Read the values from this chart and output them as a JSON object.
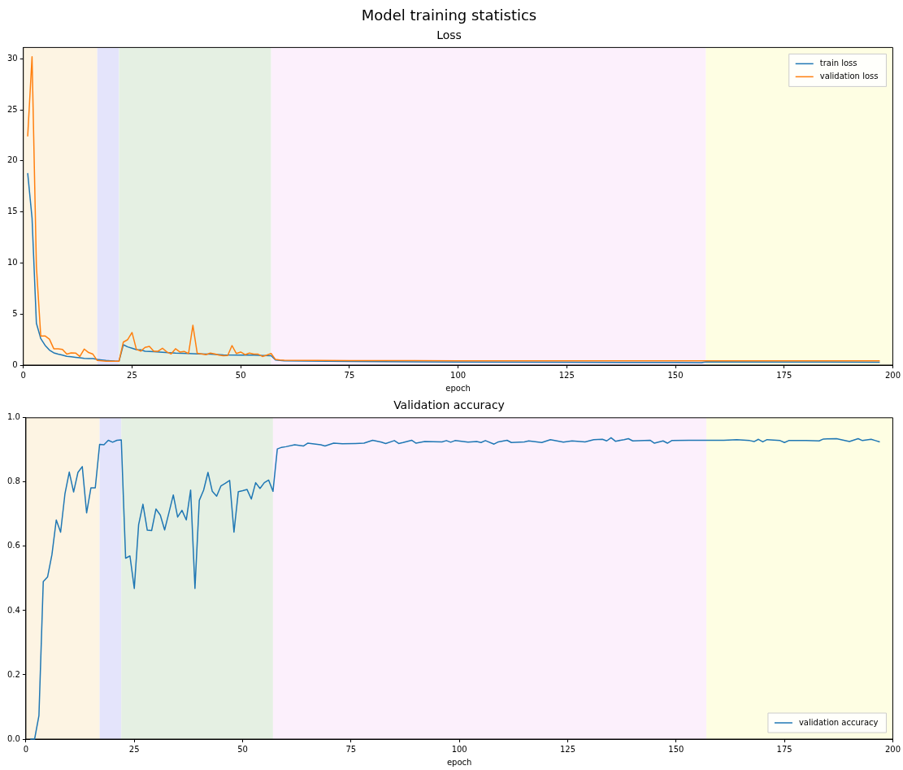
{
  "chart_data": [
    {
      "type": "line",
      "title": "Model training statistics",
      "subtitle": "Loss",
      "xlabel": "epoch",
      "xlim": [
        0,
        200
      ],
      "xticks": [
        0,
        25,
        50,
        75,
        100,
        125,
        150,
        175,
        200
      ],
      "ylim": [
        0,
        31.1
      ],
      "yticks": [
        0,
        5,
        10,
        15,
        20,
        25,
        30
      ],
      "grid": false,
      "legend": "top right",
      "bands": [
        {
          "axis": "x",
          "from": 0,
          "to": 17,
          "color": "#fdf4e3"
        },
        {
          "axis": "x",
          "from": 17,
          "to": 22,
          "color": "#e4e4fb"
        },
        {
          "axis": "x",
          "from": 22,
          "to": 57,
          "color": "#e5f0e3"
        },
        {
          "axis": "x",
          "from": 57,
          "to": 157,
          "color": "#fcf0fc"
        },
        {
          "axis": "x",
          "from": 157,
          "to": 200,
          "color": "#fefee3"
        }
      ],
      "series": [
        {
          "name": "train loss",
          "color": "#1f77b4",
          "x": [
            1,
            2,
            3,
            4,
            5,
            6,
            7,
            8,
            9,
            10,
            11,
            12,
            13,
            14,
            15,
            16,
            17,
            18,
            19,
            20,
            21,
            22,
            23,
            24,
            25,
            26,
            27,
            28,
            29,
            30,
            32,
            35,
            38,
            40,
            43,
            46,
            50,
            53,
            55,
            57,
            58,
            59,
            60,
            75,
            100,
            125,
            150,
            156,
            157,
            175,
            197
          ],
          "values": [
            18.8,
            14.4,
            4.1,
            2.6,
            1.94,
            1.47,
            1.2,
            1.07,
            0.97,
            0.86,
            0.81,
            0.76,
            0.71,
            0.65,
            0.63,
            0.63,
            0.55,
            0.5,
            0.45,
            0.42,
            0.39,
            0.37,
            1.99,
            1.78,
            1.65,
            1.52,
            1.49,
            1.36,
            1.34,
            1.31,
            1.26,
            1.18,
            1.13,
            1.1,
            1.07,
            1.0,
            0.97,
            0.97,
            0.94,
            0.92,
            0.5,
            0.45,
            0.42,
            0.35,
            0.3,
            0.27,
            0.25,
            0.24,
            0.32,
            0.3,
            0.28
          ]
        },
        {
          "name": "validation loss",
          "color": "#ff7f0e",
          "x": [
            1,
            2,
            3,
            4,
            5,
            6,
            7,
            8,
            9,
            10,
            11,
            12,
            13,
            14,
            15,
            16,
            17,
            18,
            19,
            20,
            21,
            22,
            23,
            24,
            25,
            26,
            27,
            28,
            29,
            30,
            31,
            32,
            33,
            34,
            35,
            36,
            37,
            38,
            39,
            40,
            41,
            42,
            43,
            44,
            45,
            46,
            47,
            48,
            49,
            50,
            51,
            52,
            53,
            54,
            55,
            56,
            57,
            58,
            59,
            60,
            75,
            100,
            125,
            150,
            175,
            197
          ],
          "values": [
            22.4,
            30.2,
            9.7,
            2.85,
            2.85,
            2.54,
            1.6,
            1.6,
            1.54,
            1.07,
            1.2,
            1.18,
            0.84,
            1.57,
            1.23,
            1.07,
            0.45,
            0.42,
            0.37,
            0.37,
            0.37,
            0.37,
            2.25,
            2.49,
            3.19,
            1.54,
            1.36,
            1.73,
            1.83,
            1.36,
            1.36,
            1.65,
            1.28,
            1.1,
            1.6,
            1.28,
            1.34,
            1.13,
            3.9,
            1.15,
            1.1,
            1.02,
            1.18,
            1.1,
            0.97,
            0.92,
            0.94,
            1.91,
            1.13,
            1.28,
            1.02,
            1.18,
            1.07,
            1.07,
            0.84,
            0.97,
            1.13,
            0.55,
            0.5,
            0.47,
            0.44,
            0.42,
            0.41,
            0.42,
            0.42,
            0.41
          ]
        }
      ]
    },
    {
      "type": "line",
      "title": "Validation accuracy",
      "xlabel": "epoch",
      "xlim": [
        0,
        200
      ],
      "xticks": [
        0,
        25,
        50,
        75,
        100,
        125,
        150,
        175,
        200
      ],
      "ylim": [
        0,
        1
      ],
      "yticks": [
        {
          "value": 0,
          "label": "0.0"
        },
        0.2,
        0.4,
        0.6,
        0.8,
        {
          "value": 1,
          "label": "1.0"
        }
      ],
      "grid": false,
      "legend": "bottom right",
      "bands": [
        {
          "axis": "x",
          "from": 0,
          "to": 17,
          "color": "#fdf4e3"
        },
        {
          "axis": "x",
          "from": 17,
          "to": 22,
          "color": "#e4e4fb"
        },
        {
          "axis": "x",
          "from": 22,
          "to": 57,
          "color": "#e5f0e3"
        },
        {
          "axis": "x",
          "from": 57,
          "to": 157,
          "color": "#fcf0fc"
        },
        {
          "axis": "x",
          "from": 157,
          "to": 200,
          "color": "#fefee3"
        }
      ],
      "series": [
        {
          "name": "validation accuracy",
          "color": "#1f77b4",
          "x": [
            1,
            2,
            3,
            4,
            5,
            6,
            7,
            8,
            9,
            10,
            11,
            12,
            13,
            14,
            15,
            16,
            17,
            18,
            19,
            20,
            21,
            22,
            23,
            24,
            25,
            26,
            27,
            28,
            29,
            30,
            31,
            32,
            33,
            34,
            35,
            36,
            37,
            38,
            39,
            40,
            41,
            42,
            43,
            44,
            45,
            46,
            47,
            48,
            49,
            50,
            51,
            52,
            53,
            54,
            55,
            56,
            57,
            58,
            59,
            60,
            62,
            64,
            65,
            68,
            69,
            71,
            73,
            76,
            78,
            80,
            82,
            83,
            85,
            86,
            87,
            89,
            90,
            92,
            96,
            97,
            98,
            99,
            102,
            104,
            105,
            106,
            108,
            109,
            111,
            112,
            115,
            116,
            119,
            121,
            124,
            126,
            129,
            131,
            133,
            134,
            135,
            136,
            138,
            139,
            140,
            144,
            145,
            147,
            148,
            149,
            153,
            157,
            161,
            164,
            167,
            168,
            169,
            170,
            171,
            174,
            175,
            176,
            180,
            183,
            184,
            187,
            190,
            192,
            193,
            195,
            196,
            197
          ],
          "values": [
            0,
            0,
            0.073,
            0.49,
            0.505,
            0.574,
            0.682,
            0.644,
            0.763,
            0.831,
            0.769,
            0.83,
            0.848,
            0.704,
            0.782,
            0.782,
            0.917,
            0.916,
            0.93,
            0.924,
            0.93,
            0.931,
            0.563,
            0.57,
            0.469,
            0.667,
            0.731,
            0.65,
            0.649,
            0.716,
            0.697,
            0.651,
            0.705,
            0.76,
            0.691,
            0.712,
            0.682,
            0.775,
            0.469,
            0.743,
            0.775,
            0.83,
            0.771,
            0.756,
            0.788,
            0.796,
            0.805,
            0.644,
            0.77,
            0.773,
            0.777,
            0.747,
            0.798,
            0.78,
            0.798,
            0.806,
            0.771,
            0.903,
            0.908,
            0.91,
            0.916,
            0.912,
            0.921,
            0.916,
            0.912,
            0.921,
            0.919,
            0.92,
            0.921,
            0.93,
            0.924,
            0.92,
            0.929,
            0.92,
            0.923,
            0.93,
            0.921,
            0.926,
            0.925,
            0.929,
            0.924,
            0.929,
            0.924,
            0.926,
            0.923,
            0.929,
            0.918,
            0.925,
            0.93,
            0.923,
            0.925,
            0.928,
            0.923,
            0.932,
            0.924,
            0.928,
            0.925,
            0.932,
            0.933,
            0.928,
            0.938,
            0.927,
            0.932,
            0.935,
            0.928,
            0.93,
            0.921,
            0.928,
            0.921,
            0.929,
            0.93,
            0.93,
            0.93,
            0.932,
            0.929,
            0.926,
            0.933,
            0.925,
            0.932,
            0.929,
            0.923,
            0.929,
            0.929,
            0.928,
            0.934,
            0.935,
            0.926,
            0.935,
            0.929,
            0.933,
            0.929,
            0.925
          ]
        }
      ]
    }
  ]
}
